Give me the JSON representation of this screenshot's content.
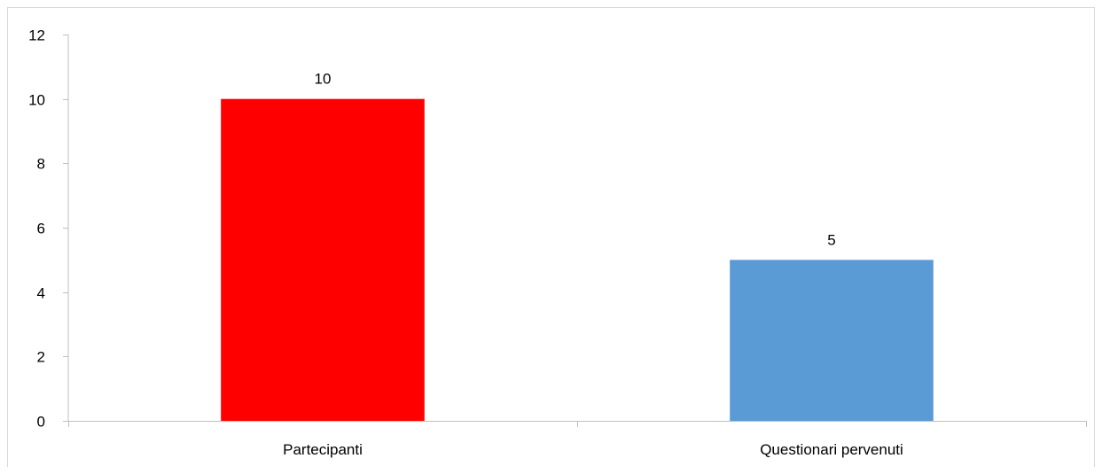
{
  "chart_data": {
    "type": "bar",
    "categories": [
      "Partecipanti",
      "Questionari pervenuti"
    ],
    "values": [
      10,
      5
    ],
    "data_labels": [
      "10",
      "5"
    ],
    "bar_colors": [
      "#ff0000",
      "#5b9bd5"
    ],
    "ylim": [
      0,
      12
    ],
    "y_ticks": [
      "0",
      "2",
      "4",
      "6",
      "8",
      "10",
      "12"
    ],
    "y_tick_values": [
      0,
      2,
      4,
      6,
      8,
      10,
      12
    ],
    "title": "",
    "xlabel": "",
    "ylabel": "",
    "grid": false,
    "legend": "none"
  }
}
